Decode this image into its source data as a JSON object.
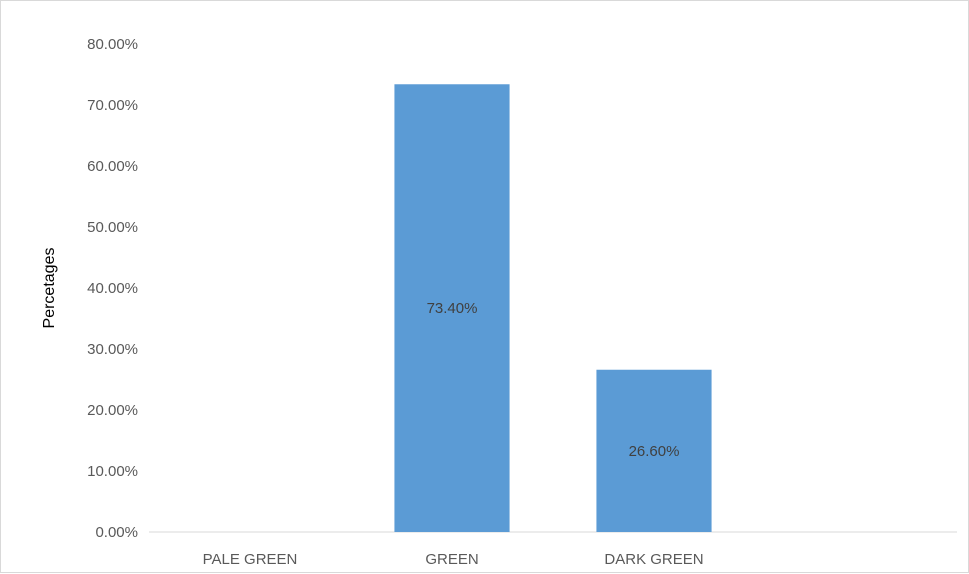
{
  "chart_data": {
    "type": "bar",
    "title": "",
    "xlabel": "",
    "ylabel": "Percetages",
    "categories": [
      "PALE GREEN",
      "GREEN",
      "DARK GREEN",
      ""
    ],
    "values": [
      0,
      73.4,
      26.6,
      0
    ],
    "data_labels": [
      "",
      "73.40%",
      "26.60%",
      ""
    ],
    "y_ticks": [
      "0.00%",
      "10.00%",
      "20.00%",
      "30.00%",
      "40.00%",
      "50.00%",
      "60.00%",
      "70.00%",
      "80.00%"
    ],
    "ylim": [
      0,
      80
    ],
    "grid": false,
    "legend": "none",
    "bar_color": "#5b9bd5"
  }
}
